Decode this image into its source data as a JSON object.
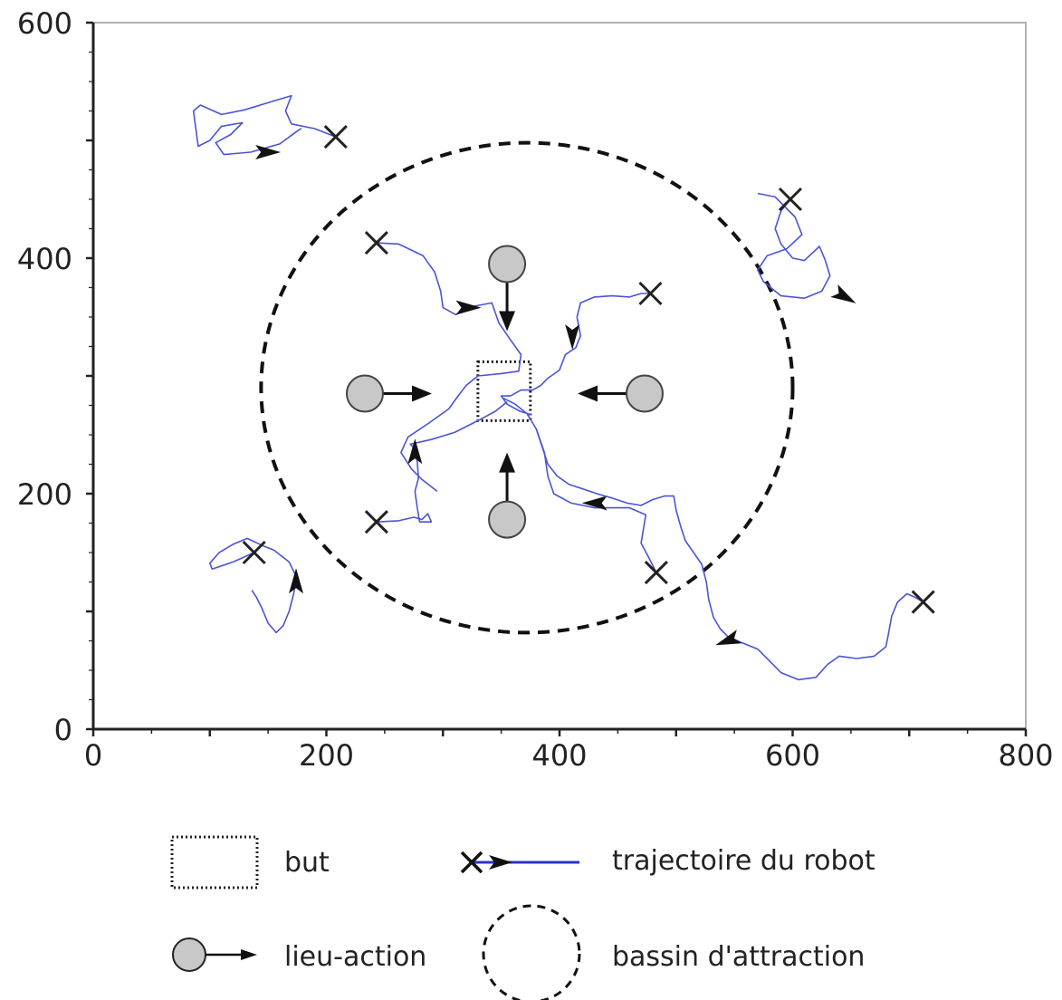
{
  "chart_data": {
    "type": "scatter",
    "title": "",
    "xlabel": "",
    "ylabel": "",
    "xlim": [
      0,
      800
    ],
    "ylim": [
      0,
      600
    ],
    "x_ticks": [
      0,
      200,
      400,
      600,
      800
    ],
    "y_ticks": [
      0,
      200,
      400,
      600
    ],
    "x_tick_labels": [
      "0",
      "200",
      "400",
      "600",
      "800"
    ],
    "y_tick_labels": [
      "0",
      "200",
      "400",
      "600"
    ],
    "grid": false,
    "goal": {
      "x0": 330,
      "y0": 262,
      "x1": 375,
      "y1": 312
    },
    "basin": {
      "cx": 372,
      "cy": 290,
      "rx": 228,
      "ry": 208
    },
    "action_places": [
      {
        "x": 355,
        "y": 395,
        "dir": "down"
      },
      {
        "x": 355,
        "y": 178,
        "dir": "up"
      },
      {
        "x": 233,
        "y": 285,
        "dir": "right"
      },
      {
        "x": 473,
        "y": 285,
        "dir": "left"
      }
    ],
    "start_points": [
      {
        "x": 208,
        "y": 503
      },
      {
        "x": 598,
        "y": 450
      },
      {
        "x": 243,
        "y": 413
      },
      {
        "x": 478,
        "y": 370
      },
      {
        "x": 243,
        "y": 176
      },
      {
        "x": 483,
        "y": 133
      },
      {
        "x": 138,
        "y": 150
      },
      {
        "x": 712,
        "y": 108
      }
    ],
    "trajectories": [
      {
        "points": [
          [
            208,
            503
          ],
          [
            190,
            510
          ],
          [
            170,
            514
          ],
          [
            165,
            525
          ],
          [
            170,
            538
          ],
          [
            150,
            532
          ],
          [
            130,
            526
          ],
          [
            110,
            522
          ],
          [
            92,
            530
          ],
          [
            86,
            525
          ],
          [
            88,
            510
          ],
          [
            90,
            495
          ],
          [
            100,
            500
          ],
          [
            110,
            512
          ],
          [
            128,
            515
          ],
          [
            118,
            505
          ],
          [
            105,
            498
          ],
          [
            112,
            488
          ],
          [
            135,
            490
          ],
          [
            160,
            497
          ],
          [
            178,
            510
          ],
          [
            168,
            503
          ]
        ],
        "arrows": [
          [
            150,
            490,
            0
          ]
        ]
      },
      {
        "points": [
          [
            598,
            450
          ],
          [
            590,
            440
          ],
          [
            585,
            425
          ],
          [
            590,
            412
          ],
          [
            600,
            400
          ],
          [
            610,
            398
          ],
          [
            623,
            410
          ],
          [
            628,
            398
          ],
          [
            632,
            385
          ],
          [
            625,
            372
          ],
          [
            610,
            366
          ],
          [
            590,
            368
          ],
          [
            575,
            380
          ],
          [
            570,
            390
          ],
          [
            578,
            402
          ],
          [
            595,
            408
          ],
          [
            608,
            420
          ],
          [
            602,
            435
          ],
          [
            592,
            445
          ],
          [
            585,
            452
          ],
          [
            570,
            455
          ]
        ],
        "arrows": [
          [
            645,
            367,
            -30
          ]
        ]
      },
      {
        "points": [
          [
            243,
            413
          ],
          [
            262,
            412
          ],
          [
            283,
            402
          ],
          [
            293,
            388
          ],
          [
            298,
            372
          ],
          [
            300,
            358
          ],
          [
            311,
            352
          ],
          [
            320,
            358
          ],
          [
            342,
            362
          ],
          [
            348,
            345
          ],
          [
            357,
            332
          ],
          [
            367,
            318
          ],
          [
            365,
            304
          ],
          [
            350,
            302
          ],
          [
            330,
            300
          ],
          [
            320,
            292
          ],
          [
            313,
            283
          ],
          [
            305,
            272
          ],
          [
            288,
            260
          ],
          [
            270,
            248
          ],
          [
            264,
            235
          ],
          [
            273,
            221
          ],
          [
            282,
            212
          ],
          [
            295,
            202
          ]
        ],
        "arrows": [
          [
            322,
            358,
            0
          ]
        ]
      },
      {
        "points": [
          [
            478,
            370
          ],
          [
            470,
            370
          ],
          [
            460,
            367
          ],
          [
            445,
            368
          ],
          [
            430,
            367
          ],
          [
            418,
            362
          ],
          [
            415,
            350
          ],
          [
            418,
            334
          ],
          [
            414,
            324
          ],
          [
            405,
            318
          ],
          [
            400,
            305
          ],
          [
            390,
            298
          ],
          [
            384,
            292
          ],
          [
            377,
            288
          ],
          [
            367,
            288
          ],
          [
            358,
            283
          ],
          [
            350,
            283
          ],
          [
            355,
            276
          ],
          [
            366,
            270
          ],
          [
            376,
            267
          ]
        ],
        "arrows": [
          [
            411,
            333,
            -90
          ]
        ]
      },
      {
        "points": [
          [
            243,
            176
          ],
          [
            262,
            177
          ],
          [
            275,
            180
          ],
          [
            282,
            178
          ],
          [
            287,
            183
          ],
          [
            290,
            176
          ],
          [
            280,
            176
          ],
          [
            278,
            188
          ],
          [
            276,
            202
          ],
          [
            279,
            213
          ],
          [
            278,
            227
          ],
          [
            276,
            238
          ],
          [
            272,
            242
          ],
          [
            290,
            246
          ],
          [
            310,
            252
          ],
          [
            330,
            262
          ],
          [
            345,
            270
          ],
          [
            355,
            278
          ]
        ],
        "arrows": [
          [
            276,
            236,
            90
          ]
        ]
      },
      {
        "points": [
          [
            483,
            133
          ],
          [
            477,
            145
          ],
          [
            470,
            158
          ],
          [
            472,
            170
          ],
          [
            474,
            182
          ],
          [
            460,
            188
          ],
          [
            430,
            188
          ],
          [
            410,
            192
          ],
          [
            395,
            200
          ],
          [
            390,
            215
          ],
          [
            387,
            235
          ],
          [
            380,
            255
          ],
          [
            372,
            268
          ],
          [
            362,
            276
          ],
          [
            352,
            281
          ]
        ],
        "arrows": [
          [
            430,
            192,
            180
          ]
        ]
      },
      {
        "points": [
          [
            138,
            150
          ],
          [
            120,
            142
          ],
          [
            102,
            136
          ],
          [
            100,
            141
          ],
          [
            108,
            150
          ],
          [
            120,
            157
          ],
          [
            132,
            162
          ],
          [
            145,
            156
          ],
          [
            155,
            152
          ],
          [
            168,
            142
          ],
          [
            174,
            130
          ],
          [
            172,
            115
          ],
          [
            168,
            100
          ],
          [
            163,
            88
          ],
          [
            157,
            82
          ],
          [
            150,
            90
          ],
          [
            145,
            102
          ],
          [
            140,
            112
          ],
          [
            136,
            118
          ]
        ],
        "arrows": [
          [
            174,
            126,
            90
          ]
        ]
      },
      {
        "points": [
          [
            712,
            108
          ],
          [
            705,
            112
          ],
          [
            698,
            115
          ],
          [
            690,
            108
          ],
          [
            685,
            96
          ],
          [
            682,
            80
          ],
          [
            680,
            70
          ],
          [
            670,
            62
          ],
          [
            655,
            60
          ],
          [
            640,
            62
          ],
          [
            630,
            55
          ],
          [
            620,
            44
          ],
          [
            605,
            42
          ],
          [
            590,
            48
          ],
          [
            580,
            58
          ],
          [
            570,
            68
          ],
          [
            555,
            74
          ],
          [
            545,
            78
          ],
          [
            538,
            85
          ],
          [
            532,
            95
          ],
          [
            528,
            110
          ],
          [
            526,
            125
          ],
          [
            522,
            140
          ],
          [
            515,
            150
          ],
          [
            508,
            160
          ],
          [
            504,
            172
          ],
          [
            500,
            186
          ],
          [
            498,
            198
          ],
          [
            490,
            198
          ],
          [
            480,
            195
          ],
          [
            470,
            190
          ],
          [
            458,
            192
          ],
          [
            446,
            196
          ],
          [
            432,
            200
          ],
          [
            420,
            204
          ],
          [
            408,
            208
          ],
          [
            398,
            215
          ],
          [
            390,
            225
          ],
          [
            385,
            240
          ],
          [
            380,
            255
          ]
        ],
        "arrows": [
          [
            544,
            75,
            200
          ]
        ]
      }
    ],
    "legend": [
      {
        "symbol": "dotted-rect",
        "label": "but"
      },
      {
        "symbol": "trajectory",
        "label": "trajectoire du robot"
      },
      {
        "symbol": "action-place",
        "label": "lieu-action"
      },
      {
        "symbol": "dashed-circle",
        "label": "bassin d'attraction"
      }
    ]
  },
  "colors": {
    "trajectory": "#4a54d8",
    "circle_fill": "#c8c8c8",
    "axis": "#222222",
    "basin": "#111111"
  }
}
